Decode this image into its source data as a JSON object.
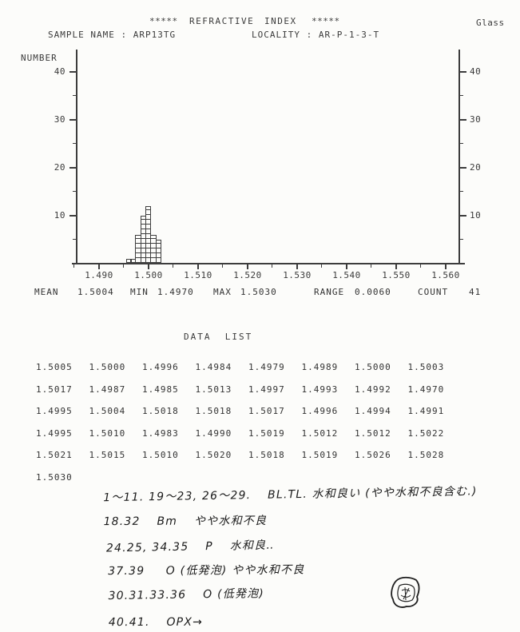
{
  "header": {
    "stars_left": "*****",
    "title_word1": "REFRACTIVE",
    "title_word2": "INDEX",
    "stars_right": "*****",
    "material": "Glass",
    "sample_line": "SAMPLE NAME : ARP13TG",
    "locality_line": "LOCALITY : AR-P-1-3-T"
  },
  "chart_data": {
    "type": "bar",
    "subtype": "histogram",
    "title": "REFRACTIVE INDEX",
    "xlabel": "",
    "ylabel": "NUMBER",
    "x_tick_labels": [
      "1.490",
      "1.500",
      "1.510",
      "1.520",
      "1.530",
      "1.540",
      "1.550",
      "1.560"
    ],
    "y_ticks": [
      10,
      20,
      30,
      40
    ],
    "y_minor_ticks": [
      5,
      15,
      25,
      35
    ],
    "xlim": [
      1.4855,
      1.5635
    ],
    "ylim": [
      0,
      45
    ],
    "grid": false,
    "legend": false,
    "histogram_as_drawn": {
      "bin_width": 0.001,
      "bin_start": 1.4955,
      "counts": [
        1,
        1,
        6,
        10,
        12,
        6,
        5
      ],
      "note": "cross-hatched unit cells, one cell per specimen"
    },
    "values": [
      1.5005,
      1.5,
      1.4996,
      1.4984,
      1.4979,
      1.4989,
      1.5,
      1.5003,
      1.5017,
      1.4987,
      1.4985,
      1.5013,
      1.4997,
      1.4993,
      1.4992,
      1.497,
      1.4995,
      1.5004,
      1.5018,
      1.5018,
      1.5017,
      1.4996,
      1.4994,
      1.4991,
      1.4995,
      1.501,
      1.4983,
      1.499,
      1.5019,
      1.5012,
      1.5012,
      1.5022,
      1.5021,
      1.5015,
      1.501,
      1.502,
      1.5018,
      1.5019,
      1.5026,
      1.5028,
      1.503
    ]
  },
  "stats": {
    "mean_label": "MEAN",
    "mean": "1.5004",
    "min_label": "MIN",
    "min": "1.4970",
    "max_label": "MAX",
    "max": "1.5030",
    "range_label": "RANGE",
    "range": "0.0060",
    "count_label": "COUNT",
    "count": "41"
  },
  "data_list": {
    "heading": "DATA  LIST",
    "rows": [
      [
        "1.5005",
        "1.5000",
        "1.4996",
        "1.4984",
        "1.4979",
        "1.4989",
        "1.5000",
        "1.5003"
      ],
      [
        "1.5017",
        "1.4987",
        "1.4985",
        "1.5013",
        "1.4997",
        "1.4993",
        "1.4992",
        "1.4970"
      ],
      [
        "1.4995",
        "1.5004",
        "1.5018",
        "1.5018",
        "1.5017",
        "1.4996",
        "1.4994",
        "1.4991"
      ],
      [
        "1.4995",
        "1.5010",
        "1.4983",
        "1.4990",
        "1.5019",
        "1.5012",
        "1.5012",
        "1.5022"
      ],
      [
        "1.5021",
        "1.5015",
        "1.5010",
        "1.5020",
        "1.5018",
        "1.5019",
        "1.5026",
        "1.5028"
      ],
      [
        "1.5030"
      ]
    ]
  },
  "notes": {
    "lines": [
      "1〜11. 19〜23, 26〜29.　 BL.TL. 水和良い (やや水和不良含む.)",
      "18.32　 Bm　 やや水和不良",
      "24.25, 34.35　 P　 水和良‥",
      "37.39　  O (低発泡) やや水和不良",
      "30.31.33.36　 O (低発泡)",
      "40.41.　 OPX→"
    ],
    "stamp": "scribble-stamp"
  }
}
